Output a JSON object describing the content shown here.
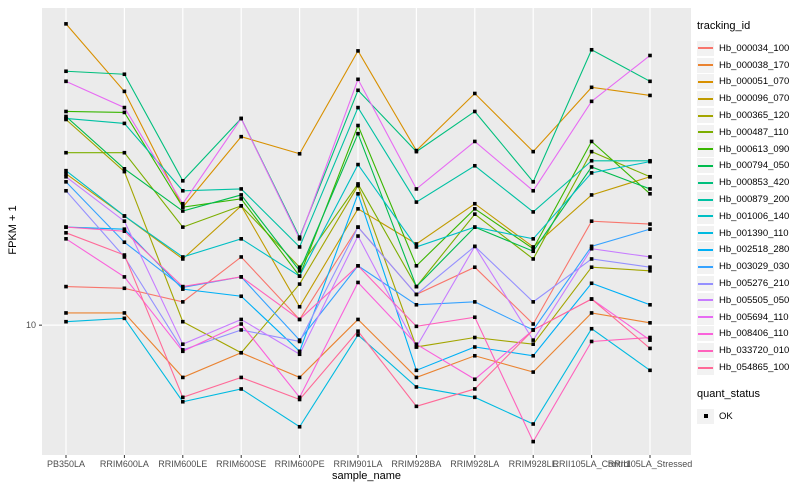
{
  "colors": {
    "panel_bg": "#EBEBEB",
    "grid": "#FFFFFF",
    "tick_text": "#4D4D4D",
    "tick_mark": "#333333",
    "point": "#000000",
    "legend_key_bg": "#F2F2F2"
  },
  "legend": {
    "tracking_title": "tracking_id",
    "quant_title": "quant_status",
    "quant_items": [
      {
        "label": "OK"
      }
    ]
  },
  "chart_data": {
    "type": "line",
    "title": "",
    "xlabel": "sample_name",
    "ylabel": "FPKM + 1",
    "y_scale": "log10",
    "ylim": [
      3.3,
      150
    ],
    "y_breaks": [
      10
    ],
    "grid": "major-white-on-gray",
    "legend_position": "right",
    "point_shape": "square",
    "quant_status": "OK",
    "x": [
      "PB350LA",
      "RRIM600LA",
      "RRIM600LE",
      "RRIM600SE",
      "RRIM600PE",
      "RRIM901LA",
      "RRIM928BA",
      "RRIM928LA",
      "RRIM928LE",
      "RRII105LA_Control",
      "RRII105LA_Stressed"
    ],
    "series": [
      {
        "name": "Hb_000034_100",
        "color": "#F8766D",
        "values": [
          13.9,
          13.7,
          12.2,
          17.9,
          10.5,
          23.1,
          13.0,
          16.4,
          10.1,
          24.3,
          23.7
        ]
      },
      {
        "name": "Hb_000038_170",
        "color": "#EA8331",
        "values": [
          11.1,
          11.1,
          6.4,
          7.9,
          6.4,
          10.5,
          6.4,
          7.7,
          6.7,
          11.1,
          10.2
        ]
      },
      {
        "name": "Hb_000051_070",
        "color": "#D89000",
        "values": [
          131,
          73.6,
          27.4,
          50,
          43.2,
          104,
          44.4,
          72.3,
          44,
          76.2,
          71.1
        ]
      },
      {
        "name": "Hb_000096_070",
        "color": "#C09B00",
        "values": [
          36.4,
          25.4,
          17.6,
          27.7,
          11.7,
          27,
          20,
          28.2,
          19.5,
          30.4,
          35.5
        ]
      },
      {
        "name": "Hb_000365_120",
        "color": "#A3A500",
        "values": [
          57.9,
          37.1,
          10.3,
          7.9,
          14.2,
          32.9,
          8.3,
          9,
          8.5,
          16.4,
          15.9
        ]
      },
      {
        "name": "Hb_000487_110",
        "color": "#7CAE00",
        "values": [
          43.6,
          43.6,
          23.1,
          27.7,
          16.4,
          33.4,
          13.9,
          25.8,
          17.6,
          44,
          35.5
        ]
      },
      {
        "name": "Hb_000613_090",
        "color": "#39B600",
        "values": [
          62,
          61.5,
          27.4,
          29.4,
          15.2,
          55,
          16.6,
          27,
          19.2,
          48,
          30.7
        ]
      },
      {
        "name": "Hb_000794_050",
        "color": "#00BB4E",
        "values": [
          59.4,
          38,
          26.5,
          30.4,
          15.9,
          51.3,
          13.9,
          23.1,
          18.8,
          38.6,
          32
        ]
      },
      {
        "name": "Hb_000853_420",
        "color": "#00BF7D",
        "values": [
          87.4,
          85.2,
          34.3,
          58.4,
          21.2,
          74.3,
          44,
          62,
          34,
          105,
          80.2
        ]
      },
      {
        "name": "Hb_000879_200",
        "color": "#00C1A3",
        "values": [
          58.4,
          56,
          31.5,
          32,
          19.5,
          64.1,
          28.6,
          39,
          26.3,
          40.7,
          40.7
        ]
      },
      {
        "name": "Hb_001006_140",
        "color": "#00BFC4",
        "values": [
          37.4,
          25.4,
          17.9,
          20.9,
          15.2,
          39.4,
          19.5,
          23.1,
          20.9,
          36.7,
          40.4
        ]
      },
      {
        "name": "Hb_001390_110",
        "color": "#00BAE0",
        "values": [
          10.3,
          10.6,
          5.2,
          5.8,
          4.2,
          9.2,
          5.9,
          5.4,
          4.3,
          9.7,
          6.8
        ]
      },
      {
        "name": "Hb_002518_280",
        "color": "#00B0F6",
        "values": [
          23.1,
          22.7,
          13.6,
          12.8,
          8,
          30.7,
          6.8,
          8.3,
          7.7,
          14.3,
          11.9
        ]
      },
      {
        "name": "Hb_003029_030",
        "color": "#35A2FF",
        "values": [
          34,
          20.3,
          13.8,
          15.1,
          8.8,
          16.6,
          11.9,
          12.2,
          9.6,
          19.6,
          22.7
        ]
      },
      {
        "name": "Hb_005276_210",
        "color": "#9590FF",
        "values": [
          31.5,
          17.9,
          8.1,
          9.6,
          8.7,
          23.1,
          13,
          19.6,
          12.2,
          17.6,
          16.4
        ]
      },
      {
        "name": "Hb_005505_050",
        "color": "#C77CFF",
        "values": [
          35.5,
          24.3,
          8.5,
          10.5,
          7.8,
          21.4,
          8.3,
          19.6,
          8.8,
          19.2,
          17.9
        ]
      },
      {
        "name": "Hb_005694_110",
        "color": "#E76BF3",
        "values": [
          80.2,
          64.1,
          28.2,
          58.4,
          20.9,
          81.6,
          32,
          48,
          31.5,
          67.6,
          100
        ]
      },
      {
        "name": "Hb_008406_110",
        "color": "#FA62DB",
        "values": [
          20.9,
          15.1,
          8,
          10.1,
          5.4,
          14.4,
          8.5,
          6.3,
          9.6,
          12.5,
          8.8
        ]
      },
      {
        "name": "Hb_033720_010",
        "color": "#FF62BC",
        "values": [
          23.1,
          22.3,
          13.9,
          15.1,
          10.5,
          16.6,
          9.9,
          10.7,
          3.7,
          8.7,
          9
        ]
      },
      {
        "name": "Hb_054865_100",
        "color": "#FF6A98",
        "values": [
          22,
          18.2,
          5.4,
          6.4,
          5.3,
          9.5,
          5,
          5.8,
          9.6,
          12.5,
          8.2
        ]
      }
    ]
  }
}
